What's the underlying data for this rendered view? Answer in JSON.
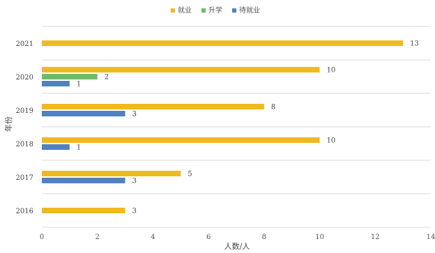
{
  "chart_data": {
    "type": "bar",
    "orientation": "horizontal",
    "categories": [
      "2021",
      "2020",
      "2019",
      "2018",
      "2017",
      "2016"
    ],
    "series": [
      {
        "name": "就业",
        "color": "#f2b822",
        "values": [
          13,
          10,
          8,
          10,
          5,
          3
        ]
      },
      {
        "name": "升学",
        "color": "#6cbb6a",
        "values": [
          null,
          2,
          null,
          null,
          null,
          null
        ]
      },
      {
        "name": "待就业",
        "color": "#4f82c0",
        "values": [
          null,
          1,
          3,
          1,
          3,
          null
        ]
      }
    ],
    "xlabel": "人数/人",
    "ylabel": "年份",
    "xlim": [
      0,
      14
    ],
    "xticks": [
      0,
      2,
      4,
      6,
      8,
      10,
      12,
      14
    ],
    "legend_position": "top",
    "grid": "horizontal separators between categories"
  }
}
